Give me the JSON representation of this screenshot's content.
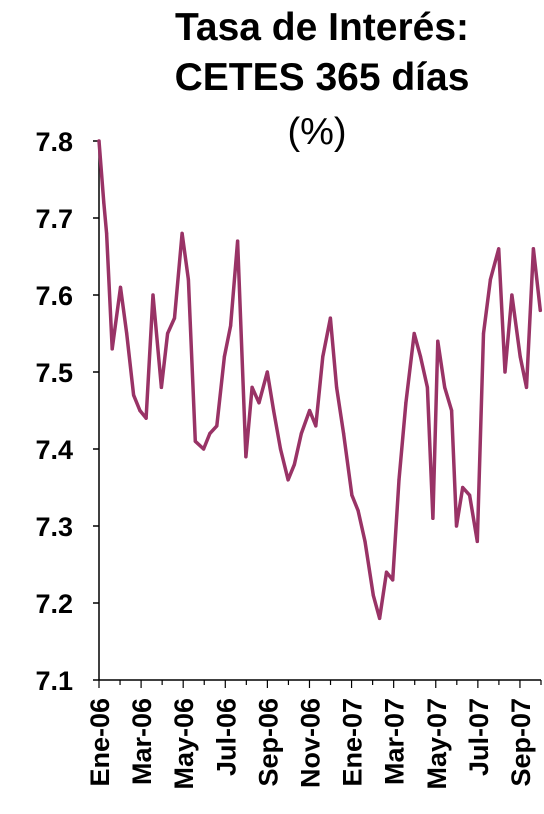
{
  "chart_data": {
    "type": "line",
    "title": "Tasa de Interés:",
    "title_line2": "CETES 365 días",
    "subtitle": "(%)",
    "xlabel": "",
    "ylabel": "",
    "ylim": [
      7.1,
      7.8
    ],
    "yticks": [
      "7.8",
      "7.7",
      "7.6",
      "7.5",
      "7.4",
      "7.3",
      "7.2",
      "7.1"
    ],
    "xtick_labels": [
      "Ene-06",
      "Mar-06",
      "May-06",
      "Jul-06",
      "Sep-06",
      "Nov-06",
      "Ene-07",
      "Mar-07",
      "May-07",
      "Jul-07",
      "Sep-07"
    ],
    "grid": false,
    "line_color": "#993366",
    "x": [
      "2006-01-01",
      "2006-01-08",
      "2006-01-12",
      "2006-01-20",
      "2006-02-01",
      "2006-02-10",
      "2006-02-20",
      "2006-03-01",
      "2006-03-10",
      "2006-03-20",
      "2006-04-01",
      "2006-04-10",
      "2006-04-20",
      "2006-05-01",
      "2006-05-10",
      "2006-05-20",
      "2006-06-01",
      "2006-06-10",
      "2006-06-20",
      "2006-07-01",
      "2006-07-10",
      "2006-07-20",
      "2006-08-01",
      "2006-08-10",
      "2006-08-20",
      "2006-09-01",
      "2006-09-10",
      "2006-09-20",
      "2006-10-01",
      "2006-10-10",
      "2006-10-20",
      "2006-11-01",
      "2006-11-10",
      "2006-11-20",
      "2006-12-01",
      "2006-12-10",
      "2006-12-20",
      "2007-01-01",
      "2007-01-10",
      "2007-01-20",
      "2007-02-01",
      "2007-02-10",
      "2007-02-20",
      "2007-03-01",
      "2007-03-10",
      "2007-03-20",
      "2007-04-01",
      "2007-04-10",
      "2007-04-20",
      "2007-04-28",
      "2007-05-05",
      "2007-05-15",
      "2007-05-25",
      "2007-06-01",
      "2007-06-10",
      "2007-06-20",
      "2007-07-01",
      "2007-07-10",
      "2007-07-20",
      "2007-08-01",
      "2007-08-10",
      "2007-08-20",
      "2007-09-01",
      "2007-09-10",
      "2007-09-20",
      "2007-09-30"
    ],
    "series": [
      {
        "values": [
          7.8,
          7.72,
          7.68,
          7.53,
          7.61,
          7.55,
          7.47,
          7.45,
          7.44,
          7.6,
          7.48,
          7.55,
          7.57,
          7.68,
          7.62,
          7.41,
          7.4,
          7.42,
          7.43,
          7.52,
          7.56,
          7.67,
          7.39,
          7.48,
          7.46,
          7.5,
          7.45,
          7.4,
          7.36,
          7.38,
          7.42,
          7.45,
          7.43,
          7.52,
          7.57,
          7.48,
          7.42,
          7.34,
          7.32,
          7.28,
          7.21,
          7.18,
          7.24,
          7.23,
          7.36,
          7.46,
          7.55,
          7.52,
          7.48,
          7.31,
          7.54,
          7.48,
          7.45,
          7.3,
          7.35,
          7.34,
          7.28,
          7.55,
          7.62,
          7.66,
          7.5,
          7.6,
          7.52,
          7.48,
          7.66,
          7.58
        ]
      }
    ]
  }
}
